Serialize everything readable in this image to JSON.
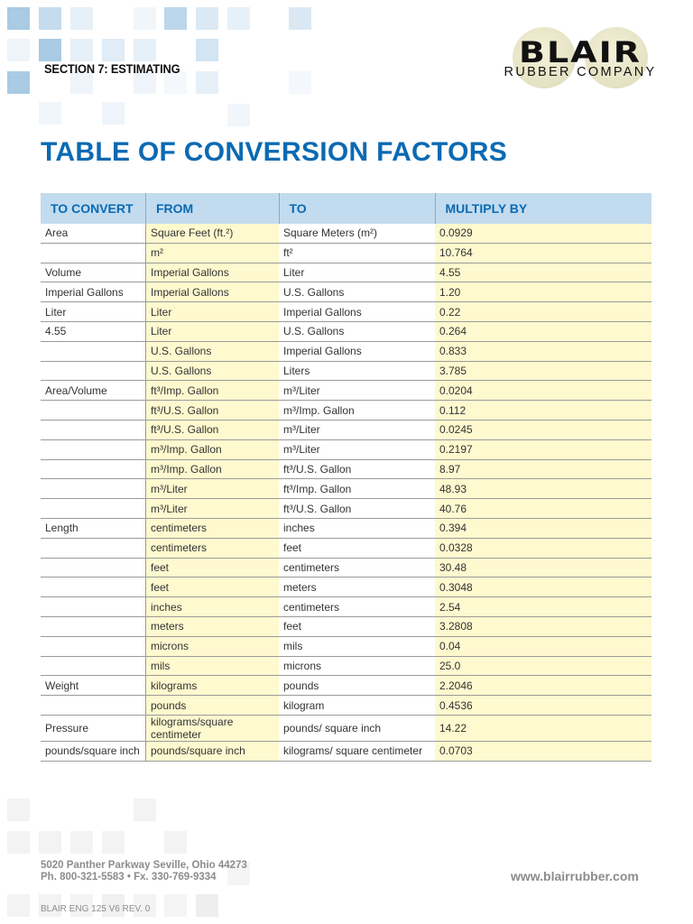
{
  "header": {
    "section": "SECTION 7: ESTIMATING",
    "logo_main": "BLAIR",
    "logo_sub": "RUBBER COMPANY"
  },
  "page_title": "TABLE OF CONVERSION FACTORS",
  "table": {
    "headers": [
      "TO CONVERT",
      "FROM",
      "TO",
      "MULTIPLY BY"
    ],
    "rows": [
      [
        "Area",
        "Square Feet (ft.²)",
        "Square Meters (m²)",
        "0.0929"
      ],
      [
        "",
        "m²",
        "ft²",
        "10.764"
      ],
      [
        "Volume",
        "Imperial Gallons",
        "Liter",
        "4.55"
      ],
      [
        "Imperial Gallons",
        "Imperial Gallons",
        "U.S. Gallons",
        "1.20"
      ],
      [
        "Liter",
        "Liter",
        "Imperial Gallons",
        "0.22"
      ],
      [
        "4.55",
        "Liter",
        "U.S. Gallons",
        "0.264"
      ],
      [
        "",
        "U.S. Gallons",
        "Imperial Gallons",
        "0.833"
      ],
      [
        "",
        "U.S. Gallons",
        "Liters",
        "3.785"
      ],
      [
        "Area/Volume",
        "ft³/Imp. Gallon",
        "m³/Liter",
        "0.0204"
      ],
      [
        "",
        "ft³/U.S. Gallon",
        "m³/Imp. Gallon",
        "0.112"
      ],
      [
        "",
        "ft³/U.S. Gallon",
        "m³/Liter",
        "0.0245"
      ],
      [
        "",
        "m³/Imp. Gallon",
        "m³/Liter",
        "0.2197"
      ],
      [
        "",
        "m³/Imp. Gallon",
        "ft³/U.S. Gallon",
        "8.97"
      ],
      [
        "",
        "m³/Liter",
        "ft³/Imp. Gallon",
        "48.93"
      ],
      [
        "",
        "m³/Liter",
        "ft³/U.S. Gallon",
        "40.76"
      ],
      [
        "Length",
        "centimeters",
        "inches",
        "0.394"
      ],
      [
        "",
        "centimeters",
        "feet",
        "0.0328"
      ],
      [
        "",
        "feet",
        "centimeters",
        "30.48"
      ],
      [
        "",
        "feet",
        "meters",
        "0.3048"
      ],
      [
        "",
        "inches",
        "centimeters",
        "2.54"
      ],
      [
        "",
        "meters",
        "feet",
        "3.2808"
      ],
      [
        "",
        "microns",
        "mils",
        "0.04"
      ],
      [
        "",
        "mils",
        "microns",
        "25.0"
      ],
      [
        "Weight",
        "kilograms",
        "pounds",
        "2.2046"
      ],
      [
        "",
        "pounds",
        "kilogram",
        "0.4536"
      ],
      [
        "Pressure",
        "kilograms/square centimeter",
        "pounds/ square inch",
        "14.22"
      ],
      [
        "pounds/square inch",
        "pounds/square inch",
        "kilograms/ square centimeter",
        "0.0703"
      ]
    ]
  },
  "footer": {
    "address": "5020 Panther Parkway Seville, Ohio 44273",
    "phone": "Ph. 800-321-5583 • Fx. 330-769-9334",
    "revision": "BLAIR ENG 125 V6 REV. 0",
    "website": "www.blairrubber.com"
  },
  "colors": {
    "title_blue": "#0a6ab3",
    "header_bg": "#c2dbee",
    "highlight_yellow": "#fff9cf"
  }
}
